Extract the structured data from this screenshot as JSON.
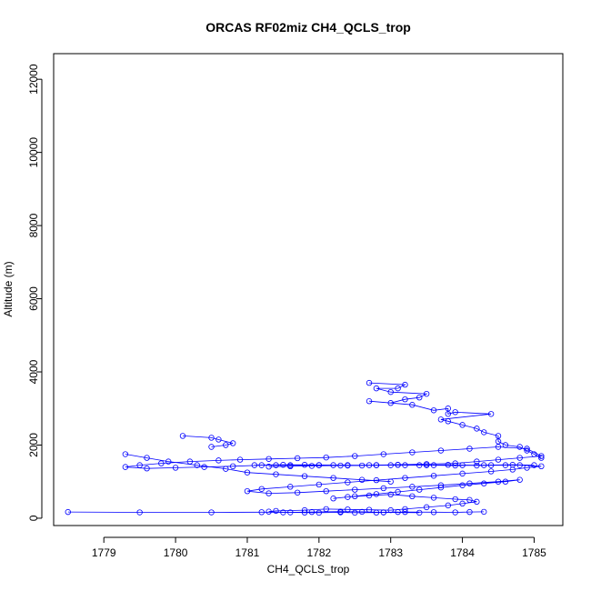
{
  "chart_data": {
    "type": "scatter",
    "title": "ORCAS RF02miz CH4_QCLS_trop",
    "xlabel": "CH4_QCLS_trop",
    "ylabel": "Altitude (m)",
    "xlim": [
      1778.3,
      1785.4
    ],
    "ylim": [
      -200,
      12700
    ],
    "xticks": [
      1779,
      1780,
      1781,
      1782,
      1783,
      1784,
      1785
    ],
    "yticks": [
      0,
      2000,
      4000,
      6000,
      8000,
      10000,
      12000
    ],
    "grid": false,
    "color": "#0000ff",
    "series": [
      {
        "style": "lines+points",
        "x": [
          1783.4,
          1782.9,
          1783.1,
          1782.8,
          1782.5,
          1782.3,
          1782.0,
          1781.8,
          1781.5,
          1781.3,
          1781.4,
          1781.8,
          1782.1,
          1782.4,
          1782.7,
          1783.0,
          1783.2,
          1783.5,
          1783.8,
          1784.0,
          1784.2,
          1784.1,
          1783.9,
          1783.6,
          1783.3,
          1783.0,
          1782.7,
          1782.4,
          1782.2,
          1782.5,
          1782.8,
          1783.1,
          1783.4,
          1783.7,
          1784.0,
          1784.3,
          1784.6,
          1784.8,
          1784.5,
          1784.1,
          1783.7,
          1783.3,
          1782.9,
          1782.5,
          1782.1,
          1781.7,
          1781.3,
          1781.0,
          1781.2,
          1781.6,
          1782.0,
          1782.4,
          1782.8,
          1783.2,
          1783.6,
          1784.0,
          1784.4,
          1784.7,
          1784.9,
          1785.1,
          1784.8,
          1784.4,
          1784.0,
          1783.6,
          1783.2,
          1782.8,
          1782.4,
          1782.0,
          1781.6,
          1781.2,
          1780.8,
          1780.4,
          1780.0,
          1779.6,
          1779.3,
          1779.5,
          1779.8,
          1780.2,
          1780.6,
          1780.9,
          1781.3,
          1781.7,
          1782.1,
          1782.5,
          1782.9,
          1783.3,
          1783.7,
          1784.1,
          1784.5,
          1784.9,
          1785.1,
          1784.8,
          1784.5,
          1784.2,
          1783.9,
          1783.5,
          1783.1,
          1782.7,
          1782.3,
          1781.9,
          1781.6,
          1781.3
        ],
        "y": [
          150,
          160,
          170,
          155,
          150,
          160,
          150,
          155,
          160,
          180,
          200,
          220,
          250,
          240,
          230,
          220,
          250,
          300,
          350,
          400,
          450,
          500,
          520,
          560,
          600,
          650,
          620,
          580,
          540,
          600,
          660,
          720,
          780,
          840,
          900,
          950,
          1000,
          1050,
          1000,
          950,
          900,
          860,
          820,
          780,
          740,
          700,
          680,
          740,
          800,
          860,
          920,
          980,
          1040,
          1100,
          1160,
          1220,
          1280,
          1330,
          1380,
          1420,
          1450,
          1450,
          1450,
          1450,
          1450,
          1450,
          1450,
          1450,
          1450,
          1450,
          1420,
          1400,
          1380,
          1360,
          1400,
          1450,
          1500,
          1550,
          1580,
          1600,
          1620,
          1640,
          1660,
          1700,
          1750,
          1800,
          1850,
          1900,
          1950,
          1900,
          1700,
          1650,
          1600,
          1550,
          1500,
          1480,
          1460,
          1450,
          1440,
          1430,
          1420,
          1410
        ]
      },
      {
        "style": "lines+points",
        "x": [
          1780.1,
          1780.5,
          1780.6,
          1780.8,
          1780.7,
          1780.5
        ],
        "y": [
          2250,
          2200,
          2150,
          2050,
          2000,
          1950
        ]
      },
      {
        "style": "lines+points",
        "x": [
          1779.3,
          1779.6,
          1779.9,
          1780.3,
          1780.7,
          1781.0,
          1781.4,
          1781.8,
          1782.2,
          1782.6,
          1783.0
        ],
        "y": [
          1750,
          1650,
          1550,
          1450,
          1350,
          1250,
          1200,
          1150,
          1100,
          1050,
          1000
        ]
      },
      {
        "style": "lines+points",
        "x": [
          1782.7,
          1783.2,
          1783.1,
          1782.8,
          1783.0,
          1783.5,
          1783.4,
          1783.2,
          1783.0,
          1782.7,
          1783.3,
          1783.6,
          1783.8,
          1783.8,
          1783.9,
          1784.4,
          1783.7,
          1783.8,
          1784.0,
          1784.2,
          1784.3,
          1784.5,
          1784.5,
          1784.6,
          1784.8,
          1784.9,
          1785.0,
          1785.1
        ],
        "y": [
          3700,
          3650,
          3550,
          3550,
          3450,
          3400,
          3300,
          3250,
          3150,
          3200,
          3100,
          2950,
          3000,
          2850,
          2900,
          2850,
          2700,
          2650,
          2550,
          2450,
          2350,
          2250,
          2100,
          2000,
          1950,
          1850,
          1750,
          1650
        ]
      },
      {
        "style": "lines+points",
        "x": [
          1778.5,
          1779.5,
          1780.5,
          1781.2,
          1781.6,
          1781.9,
          1782.3,
          1782.6,
          1782.9,
          1783.2,
          1783.6,
          1783.9,
          1784.1,
          1784.3
        ],
        "y": [
          170,
          160,
          160,
          165,
          160,
          170,
          180,
          175,
          160,
          170,
          165,
          160,
          170,
          175
        ]
      },
      {
        "style": "lines+points",
        "x": [
          1781.1,
          1781.5,
          1782.0,
          1782.4,
          1782.8,
          1783.1,
          1783.5,
          1783.9,
          1784.3,
          1784.7,
          1785.0,
          1784.6,
          1784.2,
          1783.8,
          1783.4,
          1783.0,
          1782.6,
          1782.2,
          1781.8,
          1781.4
        ],
        "y": [
          1450,
          1460,
          1450,
          1440,
          1450,
          1460,
          1450,
          1440,
          1450,
          1460,
          1450,
          1450,
          1440,
          1460,
          1450,
          1450,
          1440,
          1450,
          1460,
          1450
        ]
      }
    ]
  }
}
